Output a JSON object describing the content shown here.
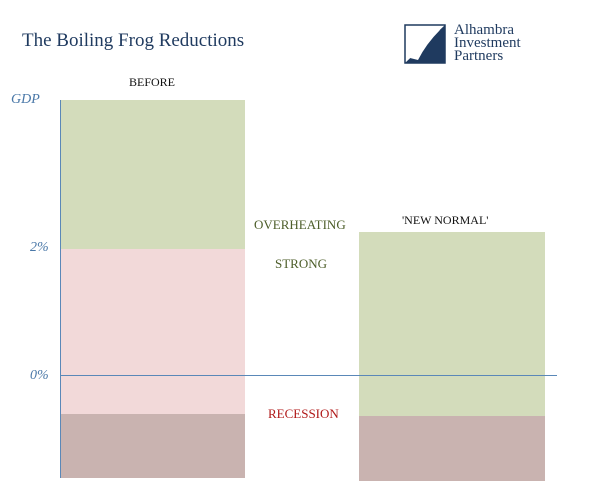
{
  "title": "The Boiling Frog Reductions",
  "logo": {
    "line1": "Alhambra",
    "line2": "Investment",
    "line3": "Partners"
  },
  "axis": {
    "y_label": "GDP",
    "tick_2": "2%",
    "tick_0": "0%"
  },
  "columns": {
    "before": "BEFORE",
    "new_normal": "'NEW NORMAL'"
  },
  "zones": {
    "overheating": "OVERHEATING",
    "strong": "STRONG",
    "recession": "RECESSION"
  },
  "colors": {
    "overheating": "#d3dcbb",
    "strong": "#f2d9d9",
    "recession": "#c9b3b0",
    "axis": "#5a88b8",
    "title": "#1f3a5f",
    "label_green": "#4d5e2a",
    "label_red": "#b01818"
  }
}
